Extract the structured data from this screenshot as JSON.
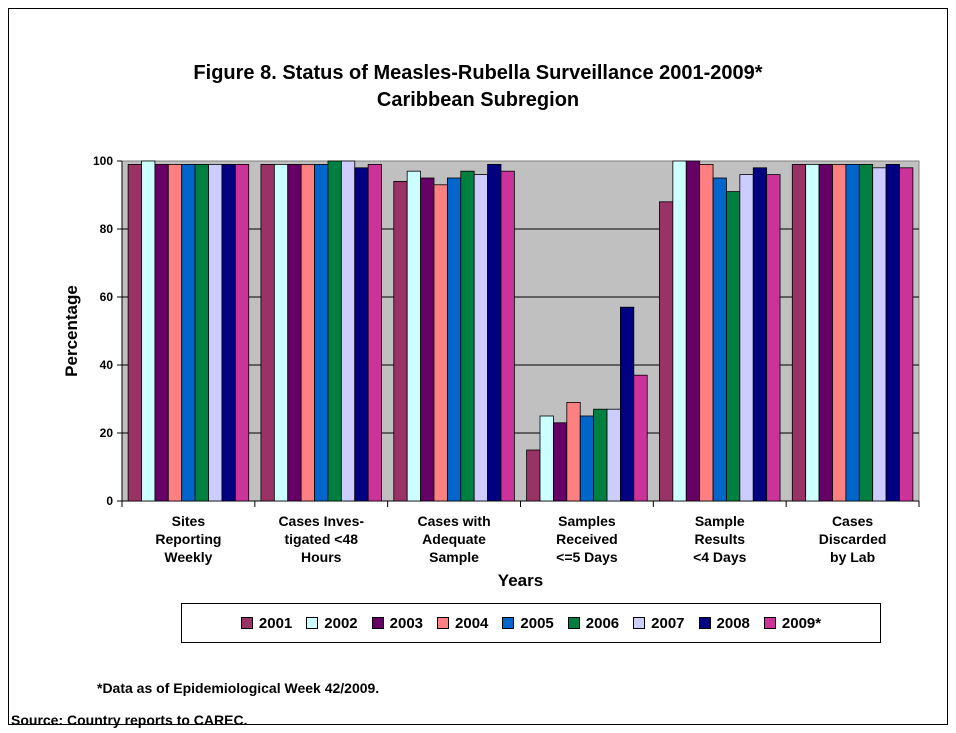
{
  "chart_data": {
    "type": "bar",
    "title": "Figure 8. Status of Measles-Rubella Surveillance 2001-2009*",
    "subtitle": "Caribbean Subregion",
    "xlabel": "Years",
    "ylabel": "Percentage",
    "ylim": [
      0,
      100
    ],
    "yticks": [
      "0",
      "20",
      "40",
      "60",
      "80",
      "100"
    ],
    "grid": true,
    "legend_position": "bottom",
    "categories": [
      [
        "Sites",
        "Reporting",
        "Weekly"
      ],
      [
        "Cases Inves-",
        "tigated <48",
        "Hours"
      ],
      [
        "Cases with",
        "Adequate",
        "Sample"
      ],
      [
        "Samples",
        "Received",
        "<=5 Days"
      ],
      [
        "Sample",
        "Results",
        "<4 Days"
      ],
      [
        "Cases",
        "Discarded",
        "by Lab"
      ]
    ],
    "series": [
      {
        "name": "2001",
        "color": "#993366",
        "values": [
          99,
          99,
          94,
          15,
          88,
          99
        ]
      },
      {
        "name": "2002",
        "color": "#CCFFFF",
        "values": [
          100,
          99,
          97,
          25,
          100,
          99
        ]
      },
      {
        "name": "2003",
        "color": "#660066",
        "values": [
          99,
          99,
          95,
          23,
          100,
          99
        ]
      },
      {
        "name": "2004",
        "color": "#FF8080",
        "values": [
          99,
          99,
          93,
          29,
          99,
          99
        ]
      },
      {
        "name": "2005",
        "color": "#0066CC",
        "values": [
          99,
          99,
          95,
          25,
          95,
          99
        ]
      },
      {
        "name": "2006",
        "color": "#008040",
        "values": [
          99,
          100,
          97,
          27,
          91,
          99
        ]
      },
      {
        "name": "2007",
        "color": "#CCCCFF",
        "values": [
          99,
          100,
          96,
          27,
          96,
          98
        ]
      },
      {
        "name": "2008",
        "color": "#000080",
        "values": [
          99,
          98,
          99,
          57,
          98,
          99
        ]
      },
      {
        "name": "2009*",
        "color": "#CC3399",
        "values": [
          99,
          99,
          97,
          37,
          96,
          98
        ]
      }
    ]
  },
  "notes": {
    "footnote": "*Data as of Epidemiological Week 42/2009.",
    "source": "Source: Country reports to CAREC."
  },
  "colors": {
    "plot_bg": "#C0C0C0"
  }
}
